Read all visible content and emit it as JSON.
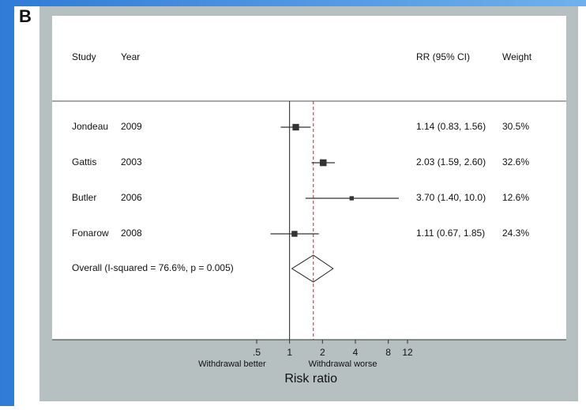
{
  "chart_data": {
    "type": "forest",
    "panel_label": "B",
    "headers": [
      "Study",
      "Year",
      "RR (95% CI)",
      "Weight"
    ],
    "categories": [
      "Jondeau",
      "Gattis",
      "Butler",
      "Fonarow"
    ],
    "years": [
      2009,
      2003,
      2006,
      2008
    ],
    "values": [
      1.14,
      2.03,
      3.7,
      1.11
    ],
    "ci_low": [
      0.83,
      1.59,
      1.4,
      0.67
    ],
    "ci_high": [
      1.56,
      2.6,
      10.0,
      1.85
    ],
    "rr_ci_labels": [
      "1.14 (0.83, 1.56)",
      "2.03 (1.59, 2.60)",
      "3.70 (1.40, 10.0)",
      "1.11 (0.67, 1.85)"
    ],
    "weights": [
      30.5,
      32.6,
      12.6,
      24.3
    ],
    "weight_labels": [
      "30.5%",
      "32.6%",
      "12.6%",
      "24.3%"
    ],
    "overall": {
      "label": "Overall  (I-squared = 76.6%, p = 0.005)",
      "estimate": 1.65,
      "ci_low": 1.05,
      "ci_high": 2.5
    },
    "null_line": 1,
    "xscale": "log",
    "xlim": [
      0.5,
      12
    ],
    "xticks": [
      {
        "value": 0.5,
        "label": ".5"
      },
      1,
      2,
      4,
      8,
      12
    ],
    "x_annotations": [
      "Withdrawal better",
      "Withdrawal worse"
    ],
    "xlabel": "Risk ratio",
    "color": "#333333",
    "overall_line_color": "#b03040"
  }
}
